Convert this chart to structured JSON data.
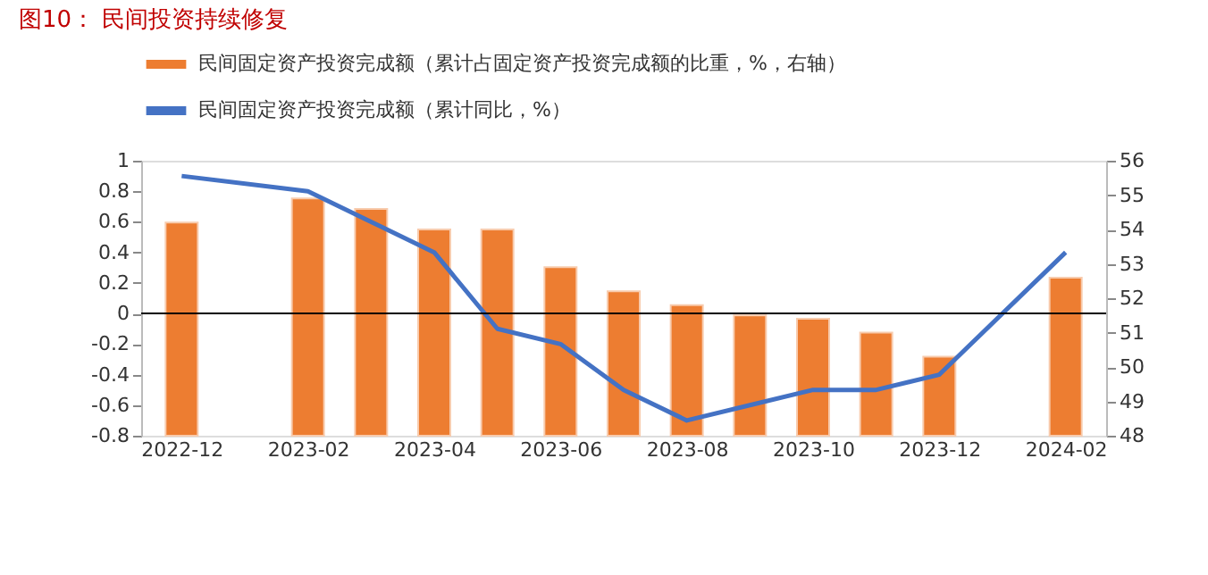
{
  "chart_data": {
    "type": "bar",
    "title": "图10：  民间投资持续修复",
    "categories": [
      "2022-12",
      null,
      "2023-02",
      null,
      "2023-04",
      null,
      "2023-06",
      null,
      "2023-08",
      null,
      "2023-10",
      null,
      "2023-12",
      null,
      "2024-02"
    ],
    "series": [
      {
        "name": "民间固定资产投资完成额（累计占固定资产投资完成额的比重，%，右轴）",
        "axis": "y2",
        "color": "#ed7d31",
        "values": [
          54.2,
          null,
          54.9,
          54.6,
          54.0,
          54.0,
          52.9,
          52.2,
          51.8,
          51.5,
          51.4,
          51.0,
          50.3,
          null,
          52.6
        ]
      },
      {
        "name": "民间固定资产投资完成额（累计同比，%）",
        "type": "line",
        "color": "#4472c4",
        "values": [
          0.9,
          null,
          0.8,
          0.6,
          0.4,
          -0.1,
          -0.2,
          -0.5,
          -0.7,
          -0.6,
          -0.5,
          -0.5,
          -0.4,
          null,
          0.4
        ]
      }
    ],
    "ylim": [
      -0.8,
      1
    ],
    "yticks": [
      -0.8,
      -0.6,
      -0.4,
      -0.2,
      0,
      0.2,
      0.4,
      0.6,
      0.8,
      1
    ],
    "y2lim": [
      48,
      56
    ],
    "y2ticks": [
      48,
      49,
      50,
      51,
      52,
      53,
      54,
      55,
      56
    ],
    "ref_lines": [
      {
        "axis": "y",
        "value": 0,
        "color": "#000000"
      }
    ],
    "grid": false,
    "legend": "top"
  }
}
